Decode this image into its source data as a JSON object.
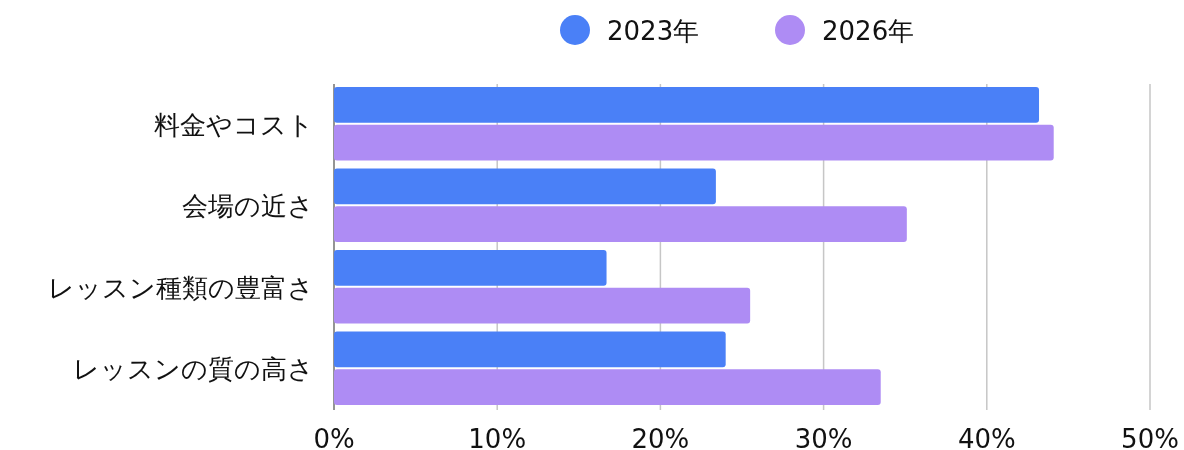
{
  "chart_data": {
    "type": "bar",
    "orientation": "horizontal",
    "categories": [
      "料金やコスト",
      "会場の近さ",
      "レッスン種類の豊富さ",
      "レッスンの質の高さ"
    ],
    "series": [
      {
        "name": "2023年",
        "color": "#4a80f7",
        "values": [
          43.2,
          23.4,
          16.7,
          24.0
        ]
      },
      {
        "name": "2026年",
        "color": "#ae8cf4",
        "values": [
          44.1,
          35.1,
          25.5,
          33.5
        ]
      }
    ],
    "xlim": [
      0,
      50
    ],
    "xticks": [
      {
        "value": 0,
        "label": "0%"
      },
      {
        "value": 10,
        "label": "10%"
      },
      {
        "value": 20,
        "label": "20%"
      },
      {
        "value": 30,
        "label": "30%"
      },
      {
        "value": 40,
        "label": "40%"
      },
      {
        "value": 50,
        "label": "50%"
      }
    ],
    "grid": "x",
    "legend": "top"
  }
}
